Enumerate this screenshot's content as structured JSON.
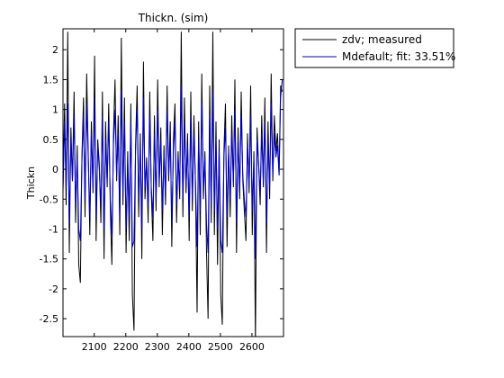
{
  "chart_data": {
    "type": "line",
    "title": "Thickn. (sim)",
    "xlabel": "",
    "ylabel": "Thickn",
    "xlim": [
      2001,
      2700
    ],
    "ylim": [
      -2.8,
      2.35
    ],
    "xticks": [
      2100,
      2200,
      2300,
      2400,
      2500,
      2600
    ],
    "xtick_labels": [
      "2100",
      "2200",
      "2300",
      "2400",
      "2500",
      "2600"
    ],
    "yticks": [
      2,
      1.5,
      1,
      0.5,
      0,
      -0.5,
      -1,
      -1.5,
      -2,
      -2.5
    ],
    "ytick_labels": [
      "2",
      "1.5",
      "1",
      "0.5",
      "0",
      "-0.5",
      "-1",
      "-1.5",
      "-2",
      "-2.5"
    ],
    "grid": false,
    "legend_position": "outside-top-right",
    "x_start": 2001,
    "x_step": 5,
    "series": [
      {
        "name": "zdv; measured",
        "color": "#000000",
        "values": [
          -0.3,
          1.1,
          -0.6,
          2.3,
          -1.4,
          0.7,
          -0.2,
          1.3,
          -0.9,
          0.4,
          -1.6,
          -1.9,
          0.2,
          1.2,
          -0.8,
          1.6,
          0.3,
          -1.1,
          0.8,
          -0.4,
          1.9,
          -1.2,
          0.5,
          0.1,
          -0.9,
          1.3,
          -1.5,
          0.8,
          -0.3,
          1.1,
          -0.7,
          -1.6,
          0.6,
          1.5,
          -0.2,
          0.9,
          -1.1,
          2.2,
          -0.6,
          1.2,
          -1.4,
          0.3,
          -1.2,
          1.1,
          -2.1,
          -2.7,
          0.4,
          1.4,
          -0.8,
          0.6,
          -1.5,
          1.8,
          -0.5,
          0.2,
          -0.9,
          1.3,
          -0.4,
          -1.2,
          0.9,
          -0.7,
          1.5,
          -0.3,
          0.7,
          -1.1,
          0.4,
          -0.6,
          1.4,
          -0.2,
          0.8,
          -1.3,
          0.5,
          1.1,
          -0.9,
          0.3,
          -0.5,
          2.3,
          -0.8,
          1.2,
          -0.4,
          0.6,
          -1.2,
          1.3,
          -0.7,
          0.9,
          -0.3,
          -2.4,
          0.8,
          -1.1,
          1.6,
          -0.5,
          0.3,
          -1.4,
          -2.5,
          1.4,
          -0.9,
          2.3,
          -1.1,
          0.8,
          -1.6,
          0.5,
          -2.1,
          -2.6,
          0.3,
          1.1,
          -1.3,
          0.4,
          -0.8,
          0.9,
          -0.3,
          1.5,
          -1.4,
          0.7,
          -0.5,
          1.3,
          -0.2,
          -0.7,
          -1.2,
          0.6,
          -0.4,
          1.4,
          -1.1,
          0.3,
          -2.9,
          0.7,
          0.1,
          -0.6,
          0.9,
          -0.3,
          1.2,
          -1.4,
          0.8,
          -0.5,
          1.6,
          -0.2,
          0.9,
          0.3,
          0.6,
          -0.1,
          1.4,
          1.3
        ]
      },
      {
        "name": "Mdefault; fit: 33.51%",
        "color": "#0000cc",
        "values": [
          -0.4,
          0.8,
          -0.3,
          1.1,
          -0.9,
          0.5,
          -0.2,
          0.9,
          -0.6,
          0.2,
          -1.0,
          -1.2,
          0.1,
          0.9,
          -0.5,
          1.1,
          0.2,
          -0.8,
          0.6,
          -0.3,
          1.2,
          -0.8,
          0.4,
          0.0,
          -0.6,
          0.9,
          -1.0,
          0.5,
          -0.2,
          0.8,
          -0.5,
          -1.1,
          0.4,
          1.0,
          -0.1,
          0.6,
          -0.8,
          1.3,
          -0.4,
          0.8,
          -1.0,
          0.2,
          -0.8,
          0.8,
          -1.3,
          -1.2,
          0.3,
          1.0,
          -0.5,
          0.4,
          -1.0,
          1.2,
          -0.3,
          0.1,
          -0.6,
          0.9,
          -0.3,
          -0.8,
          0.6,
          -0.5,
          1.0,
          -0.2,
          0.5,
          -0.7,
          0.3,
          -0.4,
          1.0,
          -0.1,
          0.5,
          -0.9,
          0.3,
          0.8,
          -0.6,
          0.2,
          -0.3,
          1.4,
          -0.5,
          0.8,
          -0.3,
          0.4,
          -0.8,
          0.9,
          -0.5,
          0.6,
          -0.2,
          -1.3,
          0.5,
          -0.7,
          1.1,
          -0.3,
          0.2,
          -0.9,
          -1.4,
          0.9,
          -0.6,
          1.3,
          -0.7,
          0.5,
          -1.0,
          0.3,
          -1.2,
          -1.4,
          0.2,
          0.7,
          -0.8,
          0.3,
          -0.5,
          0.6,
          -0.2,
          1.0,
          -0.9,
          0.5,
          -0.3,
          0.9,
          -0.1,
          -0.5,
          -0.8,
          0.4,
          -0.3,
          0.9,
          -0.7,
          0.2,
          -1.5,
          0.5,
          0.1,
          -0.4,
          0.6,
          -0.2,
          0.8,
          -0.9,
          0.5,
          -0.3,
          1.1,
          -0.1,
          0.6,
          0.2,
          0.4,
          -0.1,
          1.2,
          1.5
        ]
      }
    ]
  }
}
